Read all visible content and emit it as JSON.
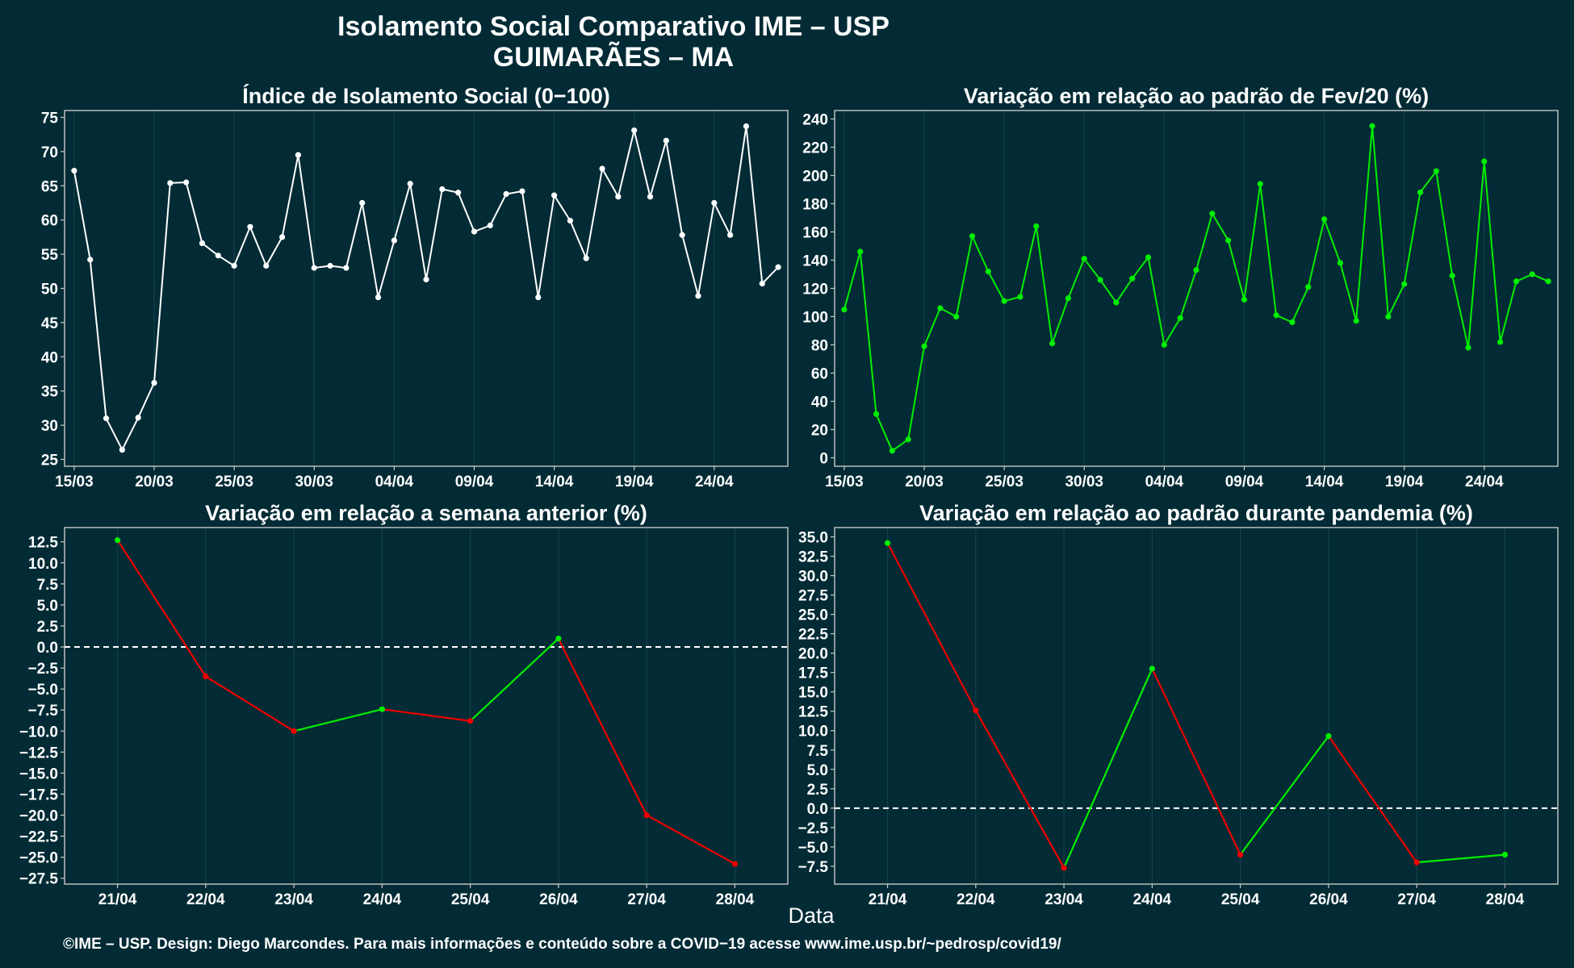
{
  "header": {
    "title_line1": "Isolamento Social Comparativo IME – USP",
    "title_line2": "GUIMARÃES – MA"
  },
  "footer": {
    "xlabel": "Data",
    "credit": "©IME – USP. Design: Diego Marcondes. Para mais informações e conteúdo sobre a COVID−19 acesse www.ime.usp.br/~pedrosp/covid19/"
  },
  "colors": {
    "background": "#022b35",
    "grid": "#12404a",
    "axis": "#c8c8c8",
    "white_series": "#ffffff",
    "green": "#00ee00",
    "red": "#ee0000"
  },
  "chart_data": [
    {
      "id": "isolation_index",
      "type": "line",
      "title": "Índice de Isolamento Social (0−100)",
      "color": "white",
      "x_tick_labels": [
        "15/03",
        "20/03",
        "25/03",
        "30/03",
        "04/04",
        "09/04",
        "14/04",
        "19/04",
        "24/04"
      ],
      "x_tick_positions": [
        0,
        5,
        10,
        15,
        20,
        25,
        30,
        35,
        40
      ],
      "xlim": [
        -0.6,
        44.6
      ],
      "ylim": [
        24,
        76
      ],
      "y_ticks": [
        25,
        30,
        35,
        40,
        45,
        50,
        55,
        60,
        65,
        70,
        75
      ],
      "y_tick_labels": [
        "25",
        "30",
        "35",
        "40",
        "45",
        "50",
        "55",
        "60",
        "65",
        "70",
        "75"
      ],
      "values": [
        67.2,
        54.2,
        31,
        26.4,
        31.1,
        36.2,
        65.4,
        65.5,
        56.6,
        54.8,
        53.3,
        59,
        53.3,
        57.5,
        69.5,
        53,
        53.3,
        53,
        62.5,
        48.7,
        57,
        65.3,
        51.3,
        64.5,
        64,
        58.3,
        59.2,
        63.8,
        64.2,
        48.7,
        63.6,
        59.9,
        54.4,
        67.5,
        63.4,
        73.1,
        63.4,
        71.6,
        57.8,
        48.9,
        62.5,
        57.8,
        73.7,
        50.7,
        53.1
      ]
    },
    {
      "id": "variation_feb20",
      "type": "line",
      "title": "Variação em relação ao padrão de Fev/20 (%)",
      "color": "green",
      "x_tick_labels": [
        "15/03",
        "20/03",
        "25/03",
        "30/03",
        "04/04",
        "09/04",
        "14/04",
        "19/04",
        "24/04"
      ],
      "x_tick_positions": [
        0,
        5,
        10,
        15,
        20,
        25,
        30,
        35,
        40
      ],
      "xlim": [
        -0.6,
        44.6
      ],
      "ylim": [
        -6,
        246
      ],
      "y_ticks": [
        0,
        20,
        40,
        60,
        80,
        100,
        120,
        140,
        160,
        180,
        200,
        220,
        240
      ],
      "y_tick_labels": [
        "0",
        "20",
        "40",
        "60",
        "80",
        "100",
        "120",
        "140",
        "160",
        "180",
        "200",
        "220",
        "240"
      ],
      "values": [
        105,
        146,
        31,
        5,
        13,
        79,
        106,
        100,
        157,
        132,
        111,
        114,
        164,
        81,
        113,
        141,
        126,
        110,
        127,
        142,
        80,
        99,
        133,
        173,
        154,
        112,
        194,
        101,
        96,
        121,
        169,
        138,
        97,
        235,
        100,
        123,
        188,
        203,
        129,
        78,
        210,
        82,
        125,
        130,
        125
      ]
    },
    {
      "id": "variation_prev_week",
      "type": "line",
      "title": "Variação em relação a semana anterior (%)",
      "colored_segments": "green if increasing, red if decreasing",
      "categories": [
        "21/04",
        "22/04",
        "23/04",
        "24/04",
        "25/04",
        "26/04",
        "27/04",
        "28/04"
      ],
      "xlim": [
        -0.6,
        7.6
      ],
      "ylim": [
        -28.2,
        14.2
      ],
      "y_ticks": [
        -27.5,
        -25,
        -22.5,
        -20,
        -17.5,
        -15,
        -12.5,
        -10,
        -7.5,
        -5,
        -2.5,
        0,
        2.5,
        5,
        7.5,
        10,
        12.5
      ],
      "y_tick_labels": [
        "−27.5",
        "−25.0",
        "−22.5",
        "−20.0",
        "−17.5",
        "−15.0",
        "−12.5",
        "−10.0",
        "−7.5",
        "−5.0",
        "−2.5",
        "0.0",
        "2.5",
        "5.0",
        "7.5",
        "10.0",
        "12.5"
      ],
      "values": [
        12.7,
        -3.5,
        -10,
        -7.4,
        -8.8,
        1,
        -20,
        -25.8
      ],
      "reference_line": 0
    },
    {
      "id": "variation_pandemic",
      "type": "line",
      "title": "Variação em relação ao padrão durante pandemia (%)",
      "colored_segments": "green if increasing, red if decreasing",
      "categories": [
        "21/04",
        "22/04",
        "23/04",
        "24/04",
        "25/04",
        "26/04",
        "27/04",
        "28/04"
      ],
      "xlim": [
        -0.6,
        7.6
      ],
      "ylim": [
        -9.8,
        36.2
      ],
      "y_ticks": [
        -7.5,
        -5,
        -2.5,
        0,
        2.5,
        5,
        7.5,
        10,
        12.5,
        15,
        17.5,
        20,
        22.5,
        25,
        27.5,
        30,
        32.5,
        35
      ],
      "y_tick_labels": [
        "−7.5",
        "−5.0",
        "−2.5",
        "0.0",
        "2.5",
        "5.0",
        "7.5",
        "10.0",
        "12.5",
        "15.0",
        "17.5",
        "20.0",
        "22.5",
        "25.0",
        "27.5",
        "30.0",
        "32.5",
        "35.0"
      ],
      "values": [
        34.2,
        12.6,
        -7.7,
        18,
        -6,
        9.3,
        -7,
        -6
      ],
      "reference_line": 0
    }
  ]
}
